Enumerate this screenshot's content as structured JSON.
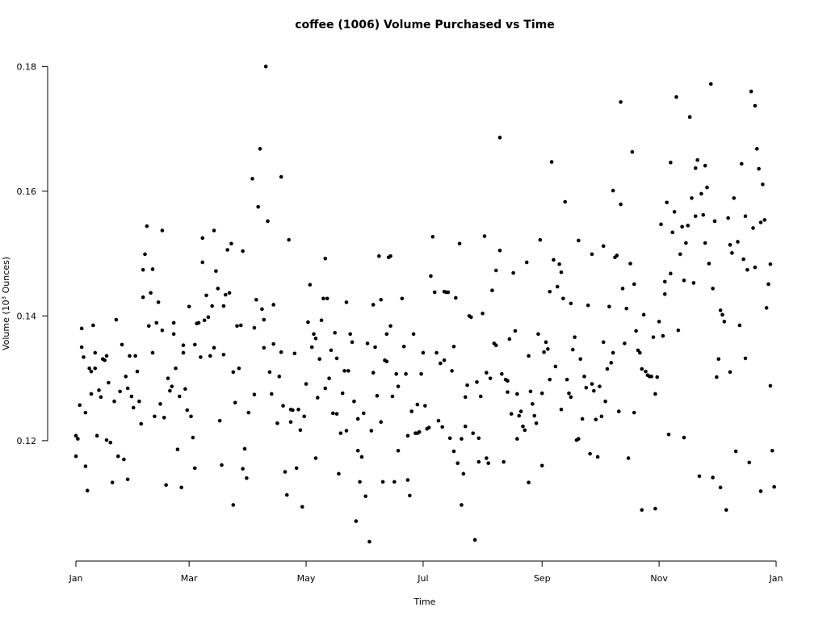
{
  "chart_data": {
    "type": "scatter",
    "title": "coffee (1006) Volume Purchased vs Time",
    "xlabel": "Time",
    "ylabel": {
      "pre": "Volume (10",
      "sup": "3",
      "post": " Ounces)"
    },
    "color": "#000000",
    "xlim": [
      0,
      365
    ],
    "ylim": [
      0.1007,
      0.1816
    ],
    "xticks": [
      {
        "value": 0,
        "label": "Jan"
      },
      {
        "value": 59,
        "label": "Mar"
      },
      {
        "value": 120,
        "label": "May"
      },
      {
        "value": 181,
        "label": "Jul"
      },
      {
        "value": 243,
        "label": "Sep"
      },
      {
        "value": 304,
        "label": "Nov"
      },
      {
        "value": 365,
        "label": "Jan"
      }
    ],
    "yticks": [
      0.12,
      0.14,
      0.16,
      0.18
    ],
    "x": [
      0,
      0,
      1,
      2,
      3,
      3,
      4,
      5,
      5,
      6,
      7,
      8,
      8,
      9,
      10,
      10,
      11,
      12,
      13,
      14,
      15,
      16,
      16,
      17,
      18,
      19,
      20,
      21,
      22,
      23,
      24,
      25,
      26,
      27,
      27,
      28,
      29,
      30,
      31,
      32,
      33,
      34,
      35,
      35,
      36,
      37,
      38,
      39,
      40,
      40,
      41,
      42,
      43,
      44,
      45,
      45,
      46,
      47,
      48,
      49,
      50,
      51,
      51,
      52,
      53,
      54,
      55,
      56,
      56,
      57,
      58,
      59,
      60,
      61,
      62,
      62,
      63,
      64,
      65,
      66,
      66,
      67,
      68,
      69,
      70,
      71,
      72,
      72,
      73,
      74,
      75,
      76,
      77,
      77,
      78,
      79,
      80,
      81,
      82,
      82,
      83,
      84,
      85,
      86,
      87,
      87,
      88,
      89,
      90,
      92,
      93,
      93,
      94,
      95,
      96,
      97,
      98,
      98,
      99,
      100,
      101,
      102,
      103,
      103,
      105,
      106,
      107,
      107,
      108,
      109,
      110,
      111,
      112,
      112,
      113,
      114,
      115,
      116,
      117,
      118,
      119,
      120,
      121,
      122,
      123,
      124,
      125,
      125,
      126,
      127,
      128,
      129,
      130,
      130,
      131,
      132,
      133,
      134,
      135,
      136,
      136,
      137,
      138,
      139,
      140,
      141,
      141,
      142,
      143,
      144,
      145,
      146,
      147,
      147,
      148,
      149,
      150,
      151,
      152,
      153,
      154,
      155,
      155,
      156,
      157,
      158,
      159,
      159,
      160,
      161,
      162,
      162,
      163,
      164,
      164,
      165,
      166,
      167,
      168,
      168,
      170,
      171,
      172,
      173,
      173,
      174,
      175,
      176,
      177,
      178,
      178,
      179,
      180,
      181,
      182,
      183,
      184,
      185,
      186,
      187,
      188,
      189,
      190,
      191,
      192,
      192,
      193,
      194,
      195,
      196,
      197,
      197,
      198,
      199,
      200,
      201,
      201,
      202,
      203,
      203,
      204,
      205,
      206,
      207,
      208,
      209,
      210,
      210,
      211,
      212,
      213,
      214,
      214,
      215,
      216,
      217,
      218,
      219,
      219,
      221,
      221,
      222,
      223,
      224,
      225,
      225,
      226,
      227,
      228,
      229,
      230,
      230,
      231,
      232,
      233,
      234,
      235,
      236,
      236,
      237,
      238,
      239,
      240,
      241,
      242,
      243,
      243,
      244,
      245,
      246,
      247,
      247,
      248,
      249,
      250,
      251,
      252,
      253,
      253,
      254,
      255,
      256,
      257,
      258,
      258,
      259,
      260,
      261,
      262,
      262,
      263,
      264,
      265,
      266,
      267,
      268,
      269,
      269,
      270,
      271,
      272,
      273,
      274,
      275,
      275,
      276,
      277,
      278,
      279,
      280,
      280,
      281,
      282,
      283,
      284,
      284,
      285,
      286,
      287,
      288,
      289,
      290,
      291,
      291,
      292,
      293,
      294,
      295,
      295,
      296,
      297,
      298,
      299,
      300,
      301,
      302,
      302,
      303,
      304,
      305,
      306,
      307,
      307,
      308,
      309,
      310,
      310,
      311,
      312,
      313,
      314,
      315,
      316,
      317,
      317,
      318,
      319,
      320,
      321,
      322,
      323,
      323,
      324,
      325,
      326,
      327,
      328,
      328,
      329,
      330,
      331,
      332,
      332,
      333,
      334,
      335,
      336,
      336,
      337,
      338,
      339,
      340,
      341,
      341,
      342,
      343,
      344,
      345,
      346,
      347,
      348,
      349,
      349,
      350,
      351,
      352,
      353,
      354,
      354,
      355,
      356,
      357,
      357,
      358,
      359,
      360,
      361,
      362,
      362,
      363,
      364
    ],
    "values": [
      0.1175,
      0.1208,
      0.1203,
      0.1257,
      0.135,
      0.138,
      0.1334,
      0.1159,
      0.1245,
      0.112,
      0.1316,
      0.1311,
      0.1275,
      0.1385,
      0.1316,
      0.1341,
      0.1208,
      0.1281,
      0.127,
      0.1331,
      0.1329,
      0.1201,
      0.1336,
      0.1293,
      0.1197,
      0.1133,
      0.1263,
      0.1394,
      0.1175,
      0.1279,
      0.1354,
      0.117,
      0.1303,
      0.1138,
      0.1284,
      0.1336,
      0.1271,
      0.1253,
      0.1336,
      0.1311,
      0.1263,
      0.1227,
      0.143,
      0.1474,
      0.1499,
      0.1544,
      0.1384,
      0.1437,
      0.1341,
      0.1475,
      0.1239,
      0.1389,
      0.1422,
      0.1259,
      0.1537,
      0.1377,
      0.1237,
      0.1129,
      0.13,
      0.128,
      0.1287,
      0.1371,
      0.1389,
      0.1316,
      0.1186,
      0.1271,
      0.1125,
      0.1341,
      0.1353,
      0.1283,
      0.1249,
      0.1415,
      0.1239,
      0.1205,
      0.1156,
      0.1354,
      0.1388,
      0.1389,
      0.1334,
      0.1525,
      0.1486,
      0.1393,
      0.1433,
      0.1398,
      0.1336,
      0.1416,
      0.1349,
      0.1537,
      0.1472,
      0.1444,
      0.1232,
      0.1161,
      0.1338,
      0.1416,
      0.1434,
      0.1506,
      0.1437,
      0.1516,
      0.131,
      0.1097,
      0.1261,
      0.1384,
      0.1316,
      0.1385,
      0.1155,
      0.1504,
      0.1187,
      0.114,
      0.1245,
      0.162,
      0.1381,
      0.1274,
      0.1426,
      0.1575,
      0.1668,
      0.1411,
      0.1349,
      0.1394,
      0.18,
      0.1552,
      0.131,
      0.1275,
      0.1418,
      0.1355,
      0.1228,
      0.1303,
      0.1623,
      0.1342,
      0.1256,
      0.115,
      0.1113,
      0.1522,
      0.125,
      0.123,
      0.1249,
      0.134,
      0.1156,
      0.125,
      0.1217,
      0.1094,
      0.1239,
      0.1291,
      0.139,
      0.145,
      0.135,
      0.1371,
      0.1172,
      0.1364,
      0.1269,
      0.1331,
      0.1393,
      0.1428,
      0.1492,
      0.1284,
      0.1428,
      0.13,
      0.1345,
      0.1244,
      0.1373,
      0.1243,
      0.1332,
      0.1147,
      0.1212,
      0.1276,
      0.1312,
      0.1216,
      0.1422,
      0.1312,
      0.1371,
      0.1358,
      0.1263,
      0.1071,
      0.1184,
      0.1235,
      0.1134,
      0.1174,
      0.1244,
      0.1111,
      0.1356,
      0.1038,
      0.1216,
      0.1309,
      0.1418,
      0.135,
      0.1272,
      0.1496,
      0.1426,
      0.123,
      0.1134,
      0.1329,
      0.1327,
      0.1371,
      0.1494,
      0.1496,
      0.1384,
      0.1271,
      0.1134,
      0.1307,
      0.1287,
      0.1184,
      0.1428,
      0.1351,
      0.1307,
      0.1137,
      0.1208,
      0.1112,
      0.1247,
      0.1371,
      0.1212,
      0.1212,
      0.1258,
      0.1214,
      0.1307,
      0.1341,
      0.1256,
      0.1219,
      0.1221,
      0.1464,
      0.1527,
      0.1438,
      0.1341,
      0.1232,
      0.1324,
      0.1222,
      0.1329,
      0.1439,
      0.1438,
      0.1438,
      0.1204,
      0.1312,
      0.1183,
      0.1351,
      0.1429,
      0.1164,
      0.1516,
      0.1203,
      0.1097,
      0.1147,
      0.1223,
      0.127,
      0.1289,
      0.14,
      0.1398,
      0.1212,
      0.1041,
      0.1294,
      0.1166,
      0.1204,
      0.1271,
      0.1404,
      0.1528,
      0.1172,
      0.1309,
      0.1164,
      0.13,
      0.1441,
      0.1356,
      0.1473,
      0.1353,
      0.1686,
      0.1505,
      0.1307,
      0.1166,
      0.1298,
      0.1278,
      0.1296,
      0.1363,
      0.1243,
      0.1469,
      0.1376,
      0.1203,
      0.1275,
      0.124,
      0.1247,
      0.1223,
      0.1217,
      0.1486,
      0.1336,
      0.1133,
      0.1279,
      0.1259,
      0.124,
      0.1228,
      0.1371,
      0.1522,
      0.1276,
      0.116,
      0.1342,
      0.1358,
      0.1347,
      0.1298,
      0.1439,
      0.1647,
      0.149,
      0.1319,
      0.1447,
      0.1483,
      0.147,
      0.125,
      0.1428,
      0.1583,
      0.1298,
      0.1276,
      0.142,
      0.127,
      0.1346,
      0.1366,
      0.1201,
      0.1203,
      0.1521,
      0.1331,
      0.1235,
      0.1303,
      0.1285,
      0.1417,
      0.1179,
      0.1291,
      0.1499,
      0.128,
      0.1234,
      0.1174,
      0.1287,
      0.1239,
      0.1358,
      0.1512,
      0.1263,
      0.1315,
      0.1415,
      0.1325,
      0.1341,
      0.1601,
      0.1494,
      0.1497,
      0.1247,
      0.1743,
      0.1579,
      0.1444,
      0.1356,
      0.1412,
      0.1172,
      0.1484,
      0.1663,
      0.1451,
      0.1245,
      0.1376,
      0.1345,
      0.1341,
      0.1089,
      0.1315,
      0.1402,
      0.1311,
      0.1305,
      0.1303,
      0.1303,
      0.1366,
      0.1275,
      0.1091,
      0.1302,
      0.1391,
      0.1547,
      0.1368,
      0.1435,
      0.1455,
      0.1582,
      0.121,
      0.1468,
      0.1646,
      0.1534,
      0.1567,
      0.1751,
      0.1377,
      0.1499,
      0.1543,
      0.1205,
      0.1457,
      0.1517,
      0.1545,
      0.1719,
      0.1589,
      0.1453,
      0.156,
      0.1637,
      0.165,
      0.1143,
      0.1596,
      0.1562,
      0.1641,
      0.1517,
      0.1606,
      0.1484,
      0.1772,
      0.1141,
      0.1444,
      0.1552,
      0.1302,
      0.1331,
      0.1125,
      0.1409,
      0.1402,
      0.1391,
      0.1089,
      0.1557,
      0.1514,
      0.131,
      0.1501,
      0.1589,
      0.1183,
      0.1519,
      0.1385,
      0.1644,
      0.1491,
      0.1332,
      0.156,
      0.1474,
      0.1165,
      0.176,
      0.1541,
      0.1478,
      0.1737,
      0.1668,
      0.1636,
      0.155,
      0.1119,
      0.1611,
      0.1554,
      0.1413,
      0.1451,
      0.1483,
      0.1288,
      0.1184,
      0.1126
    ]
  }
}
